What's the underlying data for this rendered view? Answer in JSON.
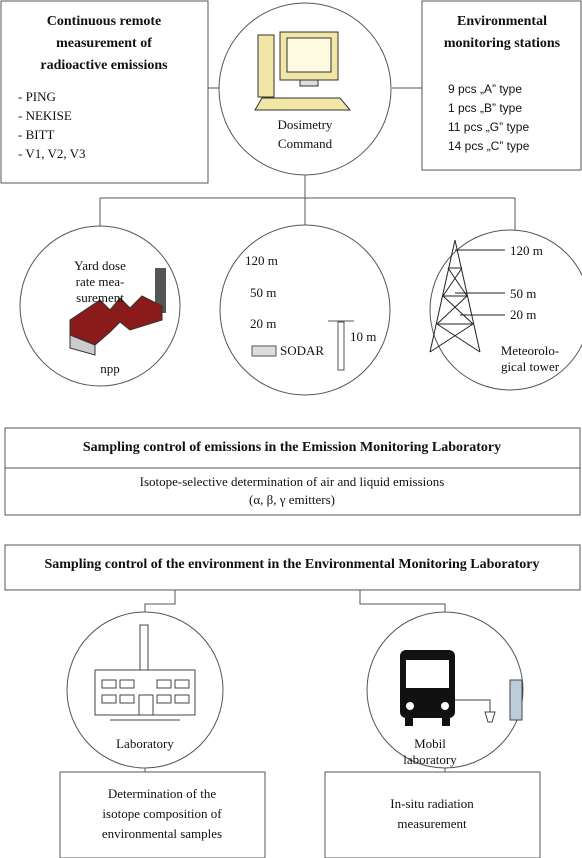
{
  "emissions_box": {
    "title": [
      "Continuous remote",
      "measurement of",
      "radioactive emissions"
    ],
    "items": [
      "- PING",
      "- NEKISE",
      "- BITT",
      "- V1, V2, V3"
    ]
  },
  "center": {
    "label": [
      "Dosimetry",
      "Command"
    ]
  },
  "stations_box": {
    "title": [
      "Environmental",
      "monitoring stations"
    ],
    "items": [
      "9 pcs „A” type",
      "1 pcs „B” type",
      "11 pcs „G” type",
      "14 pcs „C” type"
    ]
  },
  "yard_circle": {
    "label": [
      "Yard dose",
      "rate mea-",
      "surement"
    ],
    "caption": "npp"
  },
  "sodar_circle": {
    "heights": [
      "120 m",
      "50 m",
      "20 m",
      "10 m"
    ],
    "label": "SODAR"
  },
  "tower_circle": {
    "heights": [
      "120 m",
      "50 m",
      "20 m"
    ],
    "label": [
      "Meteorolo-",
      "gical tower"
    ]
  },
  "emission_lab": {
    "title": "Sampling control of emissions in the Emission Monitoring Laboratory",
    "text": [
      "Isotope-selective determination of air and liquid emissions",
      "(α, β, γ emitters)"
    ]
  },
  "environment_lab": {
    "title": "Sampling control of the environment in the Environmental Monitoring Laboratory"
  },
  "laboratory_circle": {
    "label": "Laboratory"
  },
  "mobile_circle": {
    "label": [
      "Mobil",
      "laboratory"
    ]
  },
  "lab_result": {
    "text": [
      "Determination of the",
      "isotope composition of",
      "environmental samples"
    ]
  },
  "mobile_result": {
    "text": [
      "In-situ radiation",
      "measurement"
    ]
  }
}
